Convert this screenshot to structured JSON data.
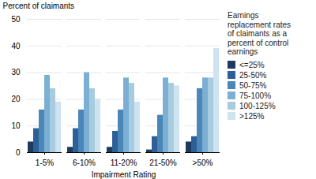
{
  "chart_data": {
    "type": "bar",
    "xlabel": "Impairment Rating",
    "ylabel": "Percent of claimants",
    "categories": [
      "1-5%",
      "6-10%",
      "11-20%",
      "21-50%",
      ">50%"
    ],
    "series": [
      {
        "name": "<=25%",
        "color": "#1e3a5f",
        "values": [
          4,
          2,
          2,
          1,
          4
        ]
      },
      {
        "name": "25-50%",
        "color": "#2d6096",
        "values": [
          9,
          9,
          8,
          6,
          6
        ]
      },
      {
        "name": "50-75%",
        "color": "#4a86b8",
        "values": [
          16,
          16,
          16,
          14,
          24
        ]
      },
      {
        "name": "75-100%",
        "color": "#7bafd4",
        "values": [
          29,
          30,
          28,
          28,
          28
        ]
      },
      {
        "name": "100-125%",
        "color": "#a8ccdf",
        "values": [
          24,
          24,
          26,
          26,
          28
        ]
      },
      {
        "name": ">125%",
        "color": "#cde3ef",
        "values": [
          19,
          20,
          19,
          25,
          39
        ]
      }
    ],
    "ylim": [
      0,
      50
    ],
    "yticks": [
      0,
      10,
      20,
      30,
      40,
      50
    ],
    "grid": true,
    "legend": "right",
    "legend_title": "Earnings\nreplacement rates\nof claimants as a\npercent of control\nearnings"
  }
}
